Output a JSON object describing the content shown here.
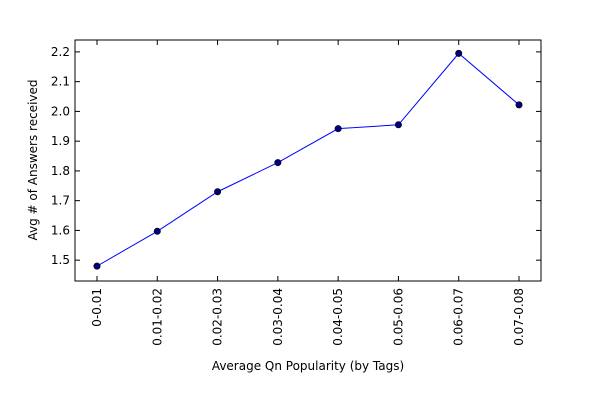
{
  "chart_data": {
    "type": "line",
    "title": "",
    "xlabel": "Average Qn Popularity (by Tags)",
    "ylabel": "Avg # of Answers received",
    "categories": [
      "0-0.01",
      "0.01-0.02",
      "0.02-0.03",
      "0.03-0.04",
      "0.04-0.05",
      "0.05-0.06",
      "0.06-0.07",
      "0.07-0.08"
    ],
    "series": [
      {
        "values": [
          1.48,
          1.597,
          1.73,
          1.828,
          1.942,
          1.955,
          2.195,
          2.022
        ]
      }
    ],
    "ylim": [
      1.43,
      2.24
    ],
    "yticks": [
      "1.5",
      "1.6",
      "1.7",
      "1.8",
      "1.9",
      "2.0",
      "2.1",
      "2.2"
    ],
    "line_color": "#0000ff",
    "marker_color": "#00007f",
    "grid": false,
    "legend": "none"
  }
}
